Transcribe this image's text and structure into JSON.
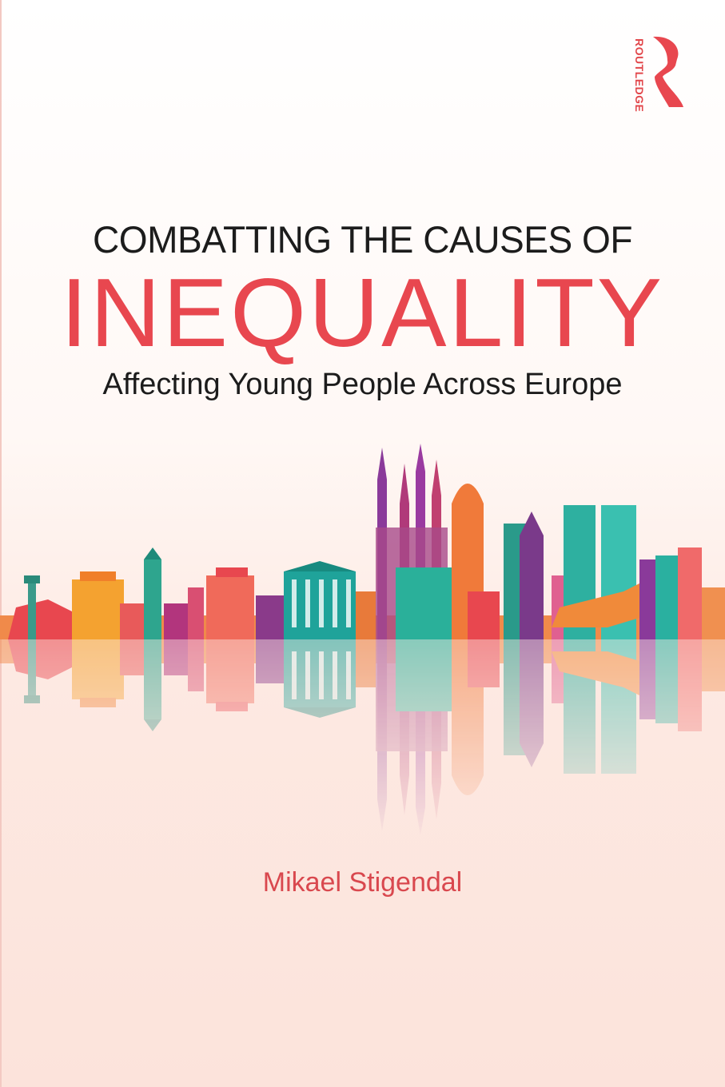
{
  "publisher": {
    "logo_text": "ROUTLEDGE",
    "icon": "routledge-r-profile-logo"
  },
  "title": {
    "line1": "COMBATTING THE CAUSES OF",
    "line2": "INEQUALITY"
  },
  "subtitle": "Affecting Young People Across Europe",
  "author": "Mikael Stigendal",
  "colors": {
    "accent": "#e8474f",
    "text": "#1c1c1c",
    "background_bottom": "#fce3db"
  }
}
